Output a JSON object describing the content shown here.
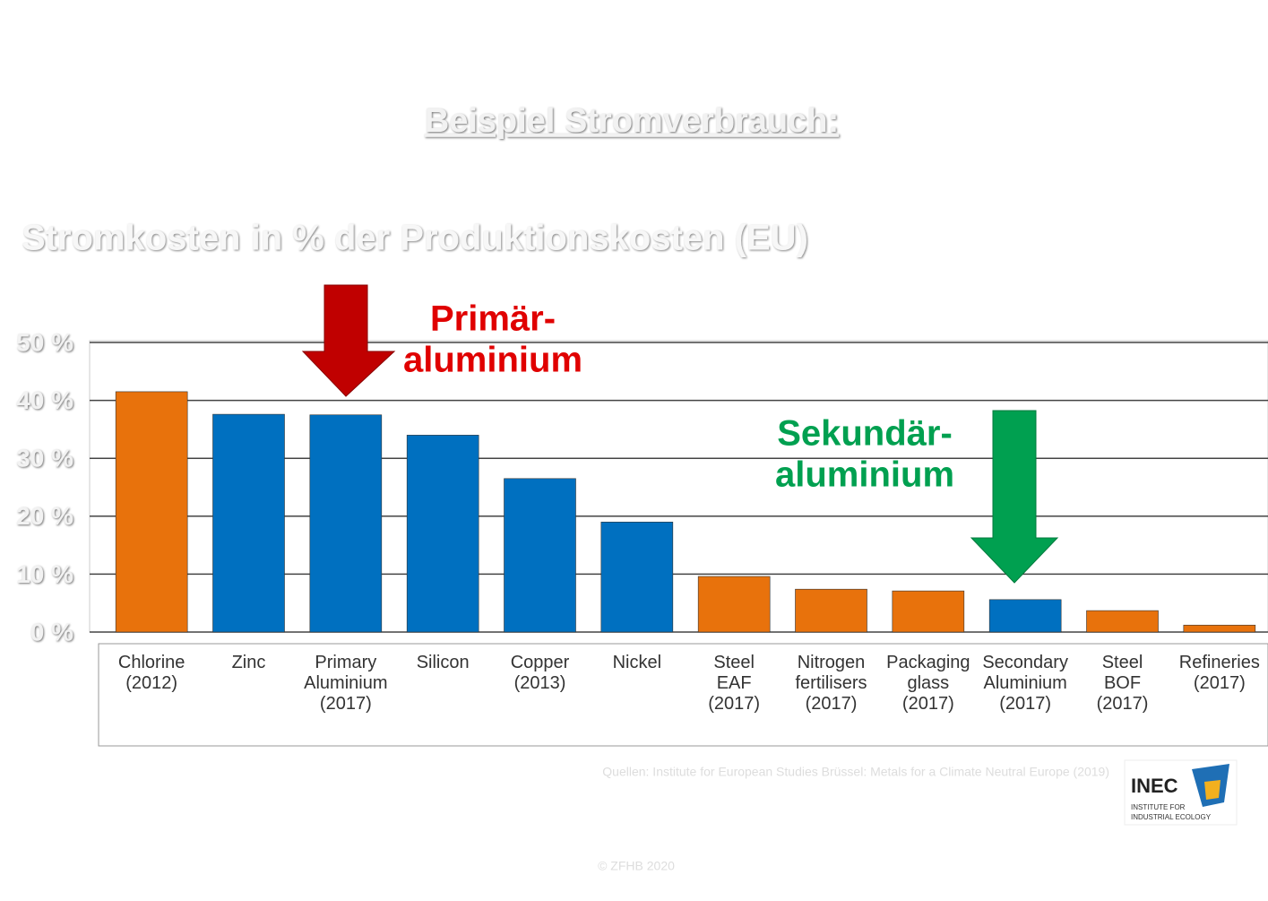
{
  "chart_data": {
    "type": "bar",
    "title": "Beispiel Stromverbrauch:",
    "subtitle": "Stromkosten in % der Produktionskosten (EU)",
    "categories": [
      [
        "Chlorine",
        "(2012)"
      ],
      [
        "Zinc"
      ],
      [
        "Primary",
        "Aluminium",
        "(2017)"
      ],
      [
        "Silicon"
      ],
      [
        "Copper",
        "(2013)"
      ],
      [
        "Nickel"
      ],
      [
        "Steel",
        "EAF",
        "(2017)"
      ],
      [
        "Nitrogen",
        "fertilisers",
        "(2017)"
      ],
      [
        "Packaging",
        "glass",
        "(2017)"
      ],
      [
        "Secondary",
        "Aluminium",
        "(2017)"
      ],
      [
        "Steel",
        "BOF",
        "(2017)"
      ],
      [
        "Refineries",
        "(2017)"
      ]
    ],
    "values": [
      41.5,
      37.6,
      37.5,
      34,
      26.5,
      19,
      9.6,
      7.4,
      7.1,
      5.6,
      3.7,
      1.2
    ],
    "colors": [
      "#e8720c",
      "#0070c0",
      "#0070c0",
      "#0070c0",
      "#0070c0",
      "#0070c0",
      "#e8720c",
      "#e8720c",
      "#e8720c",
      "#0070c0",
      "#e8720c",
      "#e8720c"
    ],
    "ylim": [
      0,
      50
    ],
    "yticks": [
      {
        "value": 0,
        "label": "0 %"
      },
      {
        "value": 10,
        "label": "10 %"
      },
      {
        "value": 20,
        "label": "20 %"
      },
      {
        "value": 30,
        "label": "30 %"
      },
      {
        "value": 40,
        "label": "40 %"
      },
      {
        "value": 50,
        "label": "50 %"
      }
    ],
    "grid": true,
    "annotations": [
      {
        "lines": [
          "Primär-",
          "aluminium"
        ],
        "color": "#e00000",
        "category": 2
      },
      {
        "lines": [
          "Sekundär-",
          "aluminium"
        ],
        "color": "#00a050",
        "category": 9
      }
    ],
    "source": "Quellen: Institute for European Studies Brüssel: Metals for a Climate Neutral Europe (2019)",
    "logo": {
      "name": "INEC",
      "caption": [
        "INSTITUTE FOR",
        "INDUSTRIAL ECOLOGY"
      ]
    },
    "copyright": "© ZFHB 2020"
  }
}
